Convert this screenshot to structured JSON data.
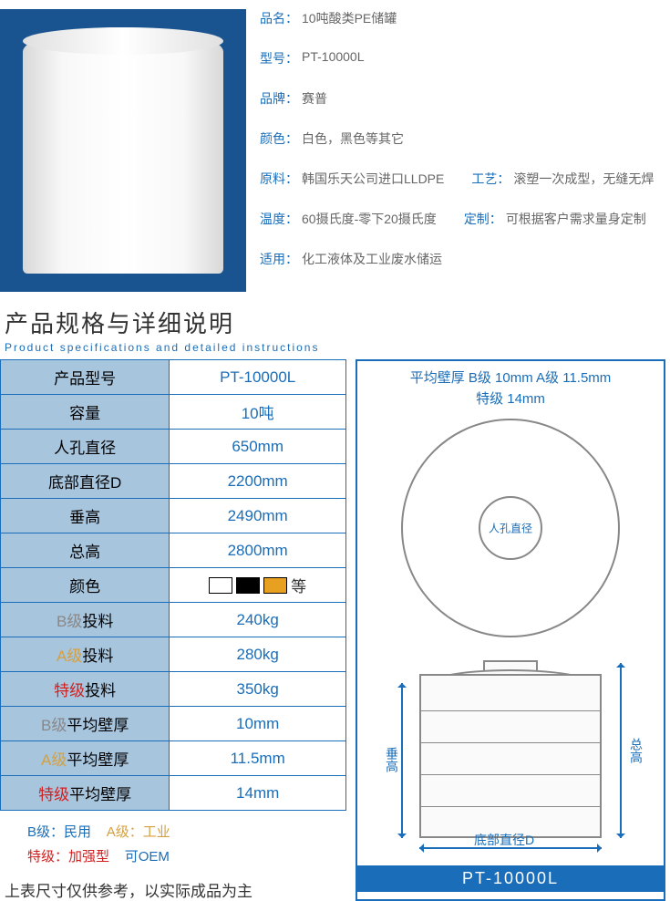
{
  "colors": {
    "primary": "#1a6db8",
    "header_bg": "#a8c5de",
    "grade_b": "#888888",
    "grade_a": "#d4a040",
    "grade_s": "#d02020",
    "product_bg": "#1a5490"
  },
  "product": {
    "name_label": "品名：",
    "name": "10吨酸类PE储罐",
    "model_label": "型号：",
    "model": "PT-10000L",
    "brand_label": "品牌：",
    "brand": "赛普",
    "color_label": "颜色：",
    "color": "白色，黑色等其它",
    "material_label": "原料：",
    "material": "韩国乐天公司进口LLDPE",
    "process_label": "工艺：",
    "process": "滚塑一次成型，无缝无焊",
    "temp_label": "温度：",
    "temp": "60摄氏度-零下20摄氏度",
    "custom_label": "定制：",
    "custom": "可根据客户需求量身定制",
    "use_label": "适用：",
    "use": "化工液体及工业废水储运"
  },
  "section": {
    "title": "产品规格与详细说明",
    "subtitle": "Product specifications and detailed instructions"
  },
  "table": {
    "rows": [
      {
        "label": "产品型号",
        "value": "PT-10000L"
      },
      {
        "label": "容量",
        "value": "10吨"
      },
      {
        "label": "人孔直径",
        "value": "650mm"
      },
      {
        "label": "底部直径D",
        "value": "2200mm"
      },
      {
        "label": "垂高",
        "value": "2490mm"
      },
      {
        "label": "总高",
        "value": "2800mm"
      },
      {
        "label": "颜色",
        "value": "",
        "swatches": [
          "#ffffff",
          "#000000",
          "#e8a020"
        ],
        "suffix": "等"
      },
      {
        "label_prefix": "B级",
        "prefix_class": "grade-b",
        "label_suffix": "投料",
        "value": "240kg"
      },
      {
        "label_prefix": "A级",
        "prefix_class": "grade-a",
        "label_suffix": "投料",
        "value": "280kg"
      },
      {
        "label_prefix": "特级",
        "prefix_class": "grade-s",
        "label_suffix": "投料",
        "value": "350kg"
      },
      {
        "label_prefix": "B级",
        "prefix_class": "grade-b",
        "label_suffix": "平均壁厚",
        "value": "10mm"
      },
      {
        "label_prefix": "A级",
        "prefix_class": "grade-a",
        "label_suffix": "平均壁厚",
        "value": "11.5mm"
      },
      {
        "label_prefix": "特级",
        "prefix_class": "grade-s",
        "label_suffix": "平均壁厚",
        "value": "14mm"
      }
    ]
  },
  "notes": {
    "b": "B级：民用",
    "a": "A级：工业",
    "s": "特级：加强型",
    "oem": "可OEM"
  },
  "footnote": "上表尺寸仅供参考，以实际成品为主",
  "diagram": {
    "header_line1": "平均壁厚  B级  10mm    A级  11.5mm",
    "header_line2": "特级  14mm",
    "manhole": "人孔直径",
    "vert_height": "垂高",
    "total_height": "总高",
    "bottom_d": "底部直径D",
    "footer": "PT-10000L"
  }
}
